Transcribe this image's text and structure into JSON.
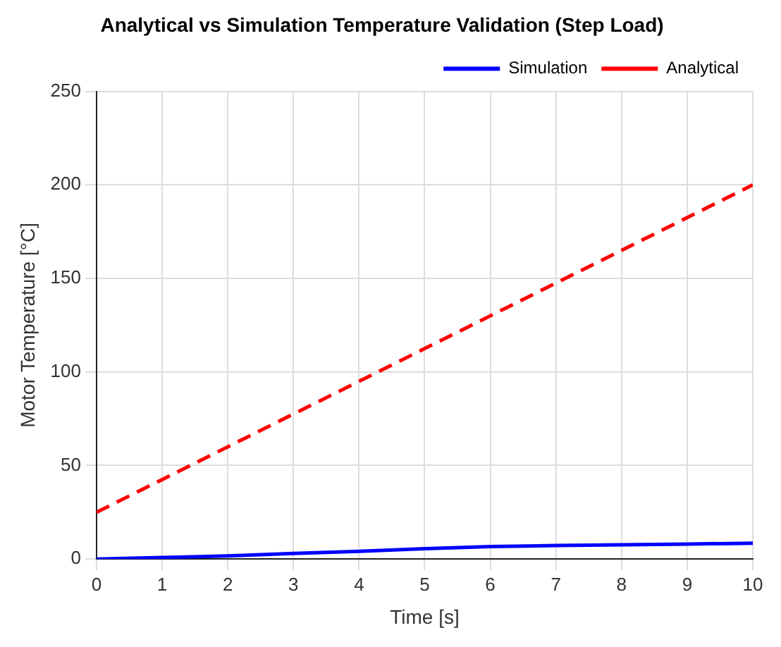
{
  "chart_data": {
    "type": "line",
    "title": "Analytical vs Simulation Temperature Validation (Step Load)",
    "xlabel": "Time [s]",
    "ylabel": "Motor Temperature [°C]",
    "x": [
      0,
      1,
      2,
      3,
      4,
      5,
      6,
      7,
      8,
      9,
      10
    ],
    "series": [
      {
        "name": "Simulation",
        "color": "#0000ff",
        "line_style": "solid",
        "values": [
          0,
          0.8,
          1.7,
          3,
          4.1,
          5.5,
          6.7,
          7.2,
          7.6,
          8,
          8.5
        ]
      },
      {
        "name": "Analytical",
        "color": "#ff0000",
        "line_style": "dashed",
        "values": [
          25,
          42.5,
          60,
          77.5,
          95,
          112.5,
          130,
          147.5,
          165,
          182.5,
          200
        ]
      }
    ],
    "xlim": [
      0,
      10
    ],
    "xticks": [
      0,
      1,
      2,
      3,
      4,
      5,
      6,
      7,
      8,
      9,
      10
    ],
    "ylim": [
      0,
      250
    ],
    "yticks": [
      0,
      50,
      100,
      150,
      200,
      250
    ],
    "grid": true,
    "legend": "top right",
    "marker": "none"
  }
}
